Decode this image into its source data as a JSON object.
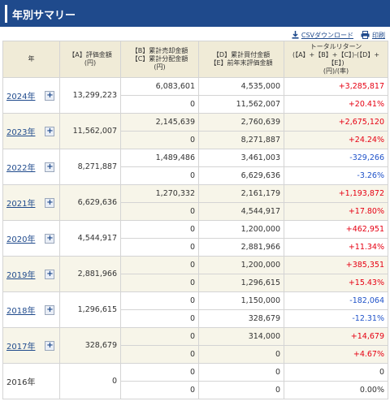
{
  "page_title": "年別サマリー",
  "actions": {
    "csv": "CSVダウンロード",
    "print": "印刷"
  },
  "headers": {
    "year": "年",
    "a": "【A】評価金額",
    "a_unit": "(円)",
    "b": "【B】累計売却金額",
    "c": "【C】累計分配金額",
    "bc_unit": "(円)",
    "d": "【D】累計買付金額",
    "e": "【E】前年末評価金額",
    "total_1": "トータルリターン",
    "total_2": "(【A】+【B】+【C】)-(【D】+",
    "total_3": "【E】)",
    "total_4": "(円)/(率)"
  },
  "rows": [
    {
      "year": "2024年",
      "link": true,
      "a": "13,299,223",
      "bc1": "6,083,601",
      "bc2": "0",
      "de1": "4,535,000",
      "de2": "11,562,007",
      "ret1": "+3,285,817",
      "ret2": "+20.41%",
      "sign": "pos"
    },
    {
      "year": "2023年",
      "link": true,
      "a": "11,562,007",
      "bc1": "2,145,639",
      "bc2": "0",
      "de1": "2,760,639",
      "de2": "8,271,887",
      "ret1": "+2,675,120",
      "ret2": "+24.24%",
      "sign": "pos"
    },
    {
      "year": "2022年",
      "link": true,
      "a": "8,271,887",
      "bc1": "1,489,486",
      "bc2": "0",
      "de1": "3,461,003",
      "de2": "6,629,636",
      "ret1": "-329,266",
      "ret2": "-3.26%",
      "sign": "neg"
    },
    {
      "year": "2021年",
      "link": true,
      "a": "6,629,636",
      "bc1": "1,270,332",
      "bc2": "0",
      "de1": "2,161,179",
      "de2": "4,544,917",
      "ret1": "+1,193,872",
      "ret2": "+17.80%",
      "sign": "pos"
    },
    {
      "year": "2020年",
      "link": true,
      "a": "4,544,917",
      "bc1": "0",
      "bc2": "0",
      "de1": "1,200,000",
      "de2": "2,881,966",
      "ret1": "+462,951",
      "ret2": "+11.34%",
      "sign": "pos"
    },
    {
      "year": "2019年",
      "link": true,
      "a": "2,881,966",
      "bc1": "0",
      "bc2": "0",
      "de1": "1,200,000",
      "de2": "1,296,615",
      "ret1": "+385,351",
      "ret2": "+15.43%",
      "sign": "pos"
    },
    {
      "year": "2018年",
      "link": true,
      "a": "1,296,615",
      "bc1": "0",
      "bc2": "0",
      "de1": "1,150,000",
      "de2": "328,679",
      "ret1": "-182,064",
      "ret2": "-12.31%",
      "sign": "neg"
    },
    {
      "year": "2017年",
      "link": true,
      "a": "328,679",
      "bc1": "0",
      "bc2": "0",
      "de1": "314,000",
      "de2": "0",
      "ret1": "+14,679",
      "ret2": "+4.67%",
      "sign": "pos"
    },
    {
      "year": "2016年",
      "link": false,
      "a": "0",
      "bc1": "0",
      "bc2": "0",
      "de1": "0",
      "de2": "0",
      "ret1": "0",
      "ret2": "0.00%",
      "sign": "zero"
    }
  ],
  "colors": {
    "header_bar": "#1f4a8c",
    "header_bg": "#f0ebd7",
    "positive": "#e60012",
    "negative": "#1f52c9"
  }
}
